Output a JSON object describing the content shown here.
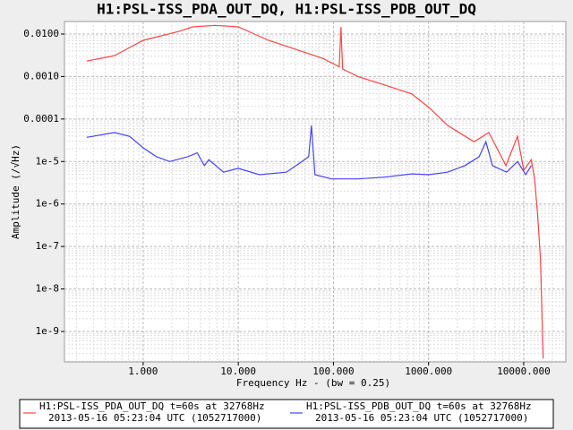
{
  "chart_data": {
    "type": "line",
    "title": "H1:PSL-ISS_PDA_OUT_DQ, H1:PSL-ISS_PDB_OUT_DQ",
    "xlabel": "Frequency Hz - (bw = 0.25)",
    "ylabel": "Amplitude  (/√Hz)",
    "xscale": "log",
    "yscale": "log",
    "grid": true,
    "legend": "bottom",
    "xlim": [
      0.149,
      27700
    ],
    "ylim": [
      1.92e-10,
      0.0197
    ],
    "xticks": [
      {
        "value": 1,
        "label": "1.000"
      },
      {
        "value": 10,
        "label": "10.000"
      },
      {
        "value": 100,
        "label": "100.000"
      },
      {
        "value": 1000,
        "label": "1000.000"
      },
      {
        "value": 10000,
        "label": "10000.000"
      }
    ],
    "yticks": [
      {
        "value": 0.01,
        "label": "0.0100"
      },
      {
        "value": 0.001,
        "label": "0.0010"
      },
      {
        "value": 0.0001,
        "label": "0.0001"
      },
      {
        "value": 1e-05,
        "label": "1e-5"
      },
      {
        "value": 1e-06,
        "label": "1e-6"
      },
      {
        "value": 1e-07,
        "label": "1e-7"
      },
      {
        "value": 1e-08,
        "label": "1e-8"
      },
      {
        "value": 1e-09,
        "label": "1e-9"
      }
    ],
    "series": [
      {
        "name": "H1:PSL-ISS_PDA_OUT_DQ t=60s at 32768Hz",
        "description": "2013-05-16 05:23:04 UTC (1052717000)",
        "color": "#ff4444",
        "x": [
          0.255,
          0.5,
          1,
          2.4,
          3.3,
          5.7,
          10,
          20.8,
          39.8,
          76,
          115,
          120,
          125,
          181,
          347,
          665,
          1000,
          1580,
          3000,
          4300,
          6500,
          8600,
          10000,
          12000,
          13000,
          14000,
          15000,
          16000
        ],
        "values": [
          0.0023,
          0.0031,
          0.0071,
          0.0116,
          0.0147,
          0.016,
          0.0147,
          0.0071,
          0.0044,
          0.0027,
          0.0017,
          0.0147,
          0.0015,
          0.001,
          0.00063,
          0.00039,
          0.00019,
          7.1e-05,
          2.9e-05,
          4.8e-05,
          8e-06,
          3.9e-05,
          6.2e-06,
          1.1e-05,
          3.9e-06,
          5.5e-07,
          4.9e-08,
          2.3e-10
        ]
      },
      {
        "name": "H1:PSL-ISS_PDB_OUT_DQ t=60s at 32768Hz",
        "description": "2013-05-16 05:23:04 UTC (1052717000)",
        "color": "#4444ff",
        "x": [
          0.255,
          0.5,
          0.72,
          1,
          1.38,
          1.9,
          2.95,
          3.7,
          4.4,
          4.9,
          7,
          10,
          16.7,
          32,
          44,
          55,
          58.7,
          64,
          95,
          181,
          347,
          665,
          1000,
          1580,
          2400,
          3400,
          4000,
          4700,
          6600,
          8600,
          10500,
          12000
        ],
        "values": [
          3.7e-05,
          4.8e-05,
          3.9e-05,
          2.1e-05,
          1.3e-05,
          1e-05,
          1.3e-05,
          1.6e-05,
          8e-06,
          1.1e-05,
          5.6e-06,
          6.9e-06,
          4.9e-06,
          5.6e-06,
          9.1e-06,
          1.3e-05,
          7e-05,
          4.9e-06,
          3.9e-06,
          3.9e-06,
          4.3e-06,
          5.1e-06,
          4.9e-06,
          5.6e-06,
          8e-06,
          1.3e-05,
          2.9e-05,
          8e-06,
          5.6e-06,
          1e-05,
          4.9e-06,
          8e-06
        ]
      }
    ]
  }
}
